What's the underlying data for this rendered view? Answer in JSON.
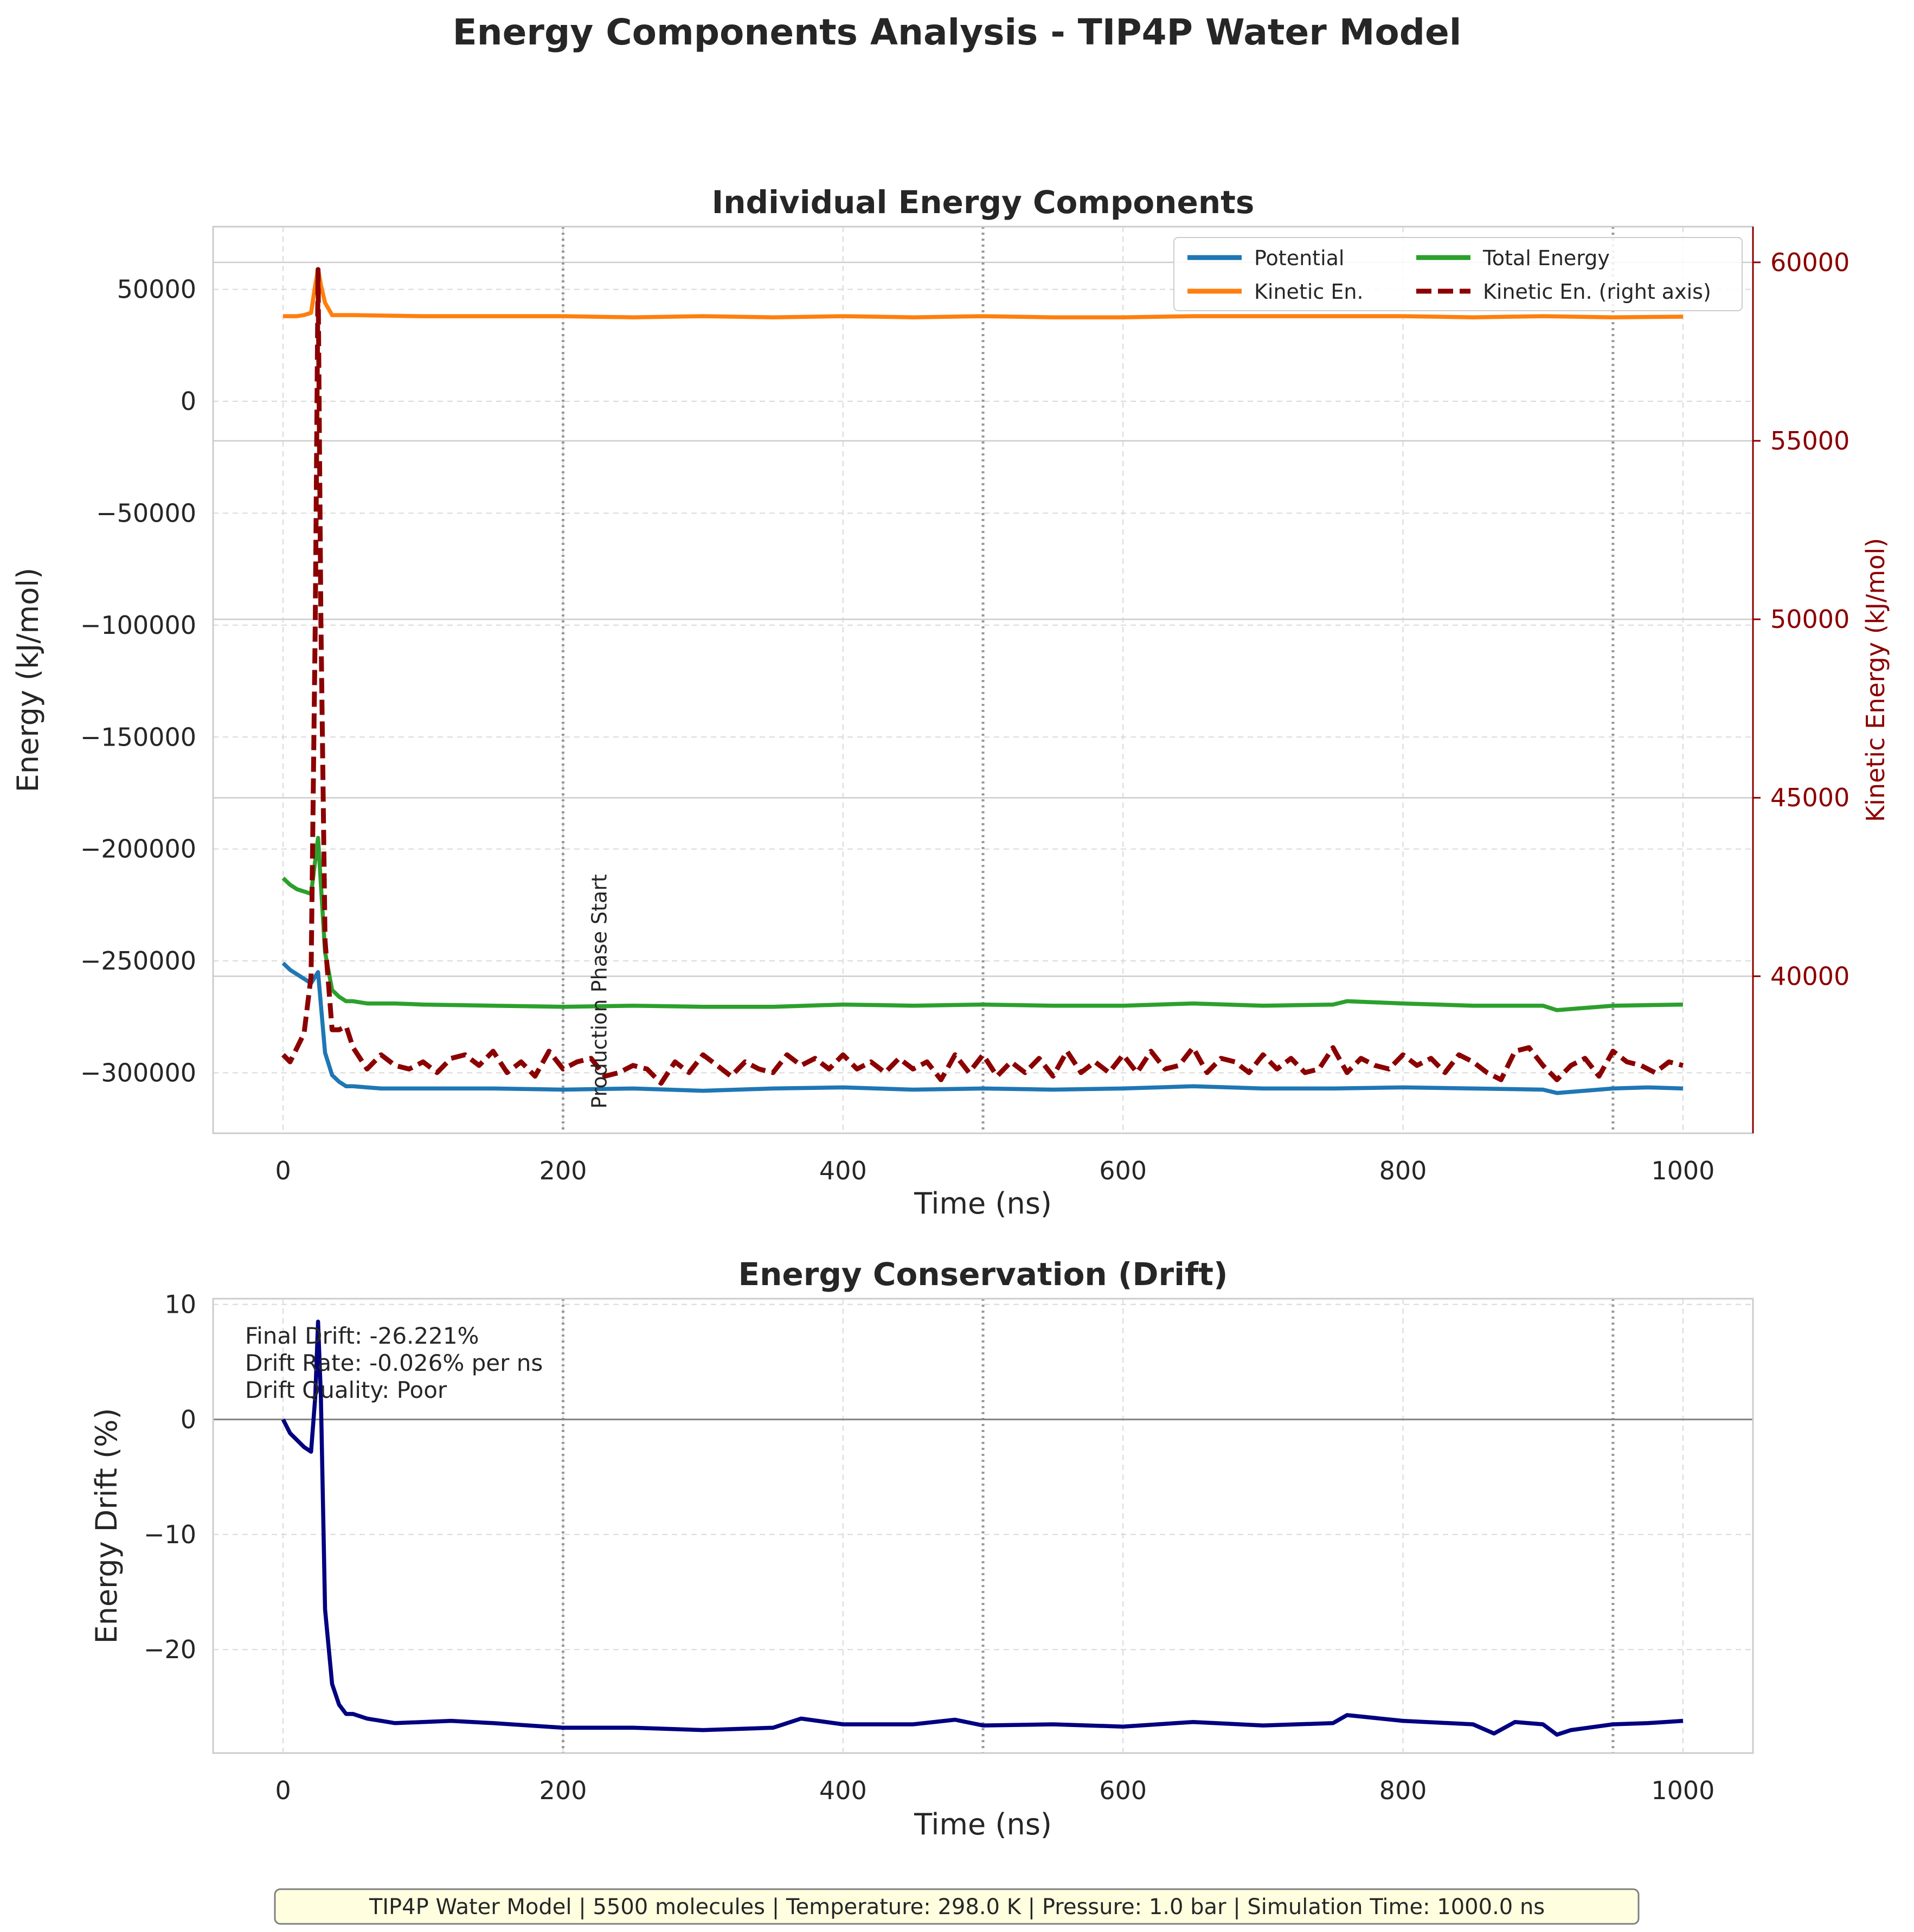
{
  "figure": {
    "title": "Energy Components Analysis - TIP4P Water Model",
    "footer": "TIP4P Water Model | 5500 molecules | Temperature: 298.0 K | Pressure: 1.0 bar | Simulation Time: 1000.0 ns"
  },
  "colors": {
    "potential": "#1f77b4",
    "kinetic": "#ff7f0e",
    "total": "#2ca02c",
    "kinetic_right": "#8b0000",
    "drift": "#000080",
    "grid": "#d9d9d9",
    "footer_bg": "#ffffe0"
  },
  "chart_data": [
    {
      "type": "line",
      "title": "Individual Energy Components",
      "xlabel": "Time (ns)",
      "ylabel": "Energy (kJ/mol)",
      "y2label": "Kinetic Energy (kJ/mol)",
      "xlim": [
        -50,
        1050
      ],
      "ylim": [
        -327000,
        78000
      ],
      "y2lim": [
        35600,
        61000
      ],
      "xticks": [
        0,
        200,
        400,
        600,
        800,
        1000
      ],
      "xtick_labels": [
        "0",
        "200",
        "400",
        "600",
        "800",
        "1000"
      ],
      "yticks": [
        50000,
        0,
        -50000,
        -100000,
        -150000,
        -200000,
        -250000,
        -300000
      ],
      "ytick_labels": [
        "50000",
        "0",
        "−50000",
        "−100000",
        "−150000",
        "−200000",
        "−250000",
        "−300000"
      ],
      "y2ticks": [
        60000,
        55000,
        50000,
        45000,
        40000
      ],
      "y2tick_labels": [
        "60000",
        "55000",
        "50000",
        "45000",
        "40000"
      ],
      "vlines": [
        200,
        500,
        950
      ],
      "annotation": "Production Phase Start",
      "annotation_x": 200,
      "annotation_y": -270000,
      "grid": true,
      "legend_position": "top-right",
      "legend": [
        "Potential",
        "Kinetic En.",
        "Total Energy",
        "Kinetic En. (right axis)"
      ],
      "series": [
        {
          "name": "Potential",
          "axis": "left",
          "style": "solid",
          "color_key": "potential",
          "x": [
            0,
            5,
            10,
            15,
            20,
            25,
            30,
            35,
            40,
            45,
            50,
            60,
            70,
            80,
            100,
            150,
            200,
            250,
            300,
            350,
            400,
            450,
            500,
            550,
            600,
            650,
            700,
            750,
            800,
            850,
            900,
            910,
            950,
            975,
            1000
          ],
          "y": [
            -251000,
            -254000,
            -256000,
            -258000,
            -260000,
            -255000,
            -291000,
            -301000,
            -304000,
            -306000,
            -306000,
            -306500,
            -307000,
            -307000,
            -307000,
            -307000,
            -307500,
            -307000,
            -308000,
            -307000,
            -306500,
            -307500,
            -307000,
            -307500,
            -307000,
            -306000,
            -307000,
            -307000,
            -306500,
            -307000,
            -307500,
            -309000,
            -307000,
            -306500,
            -307000
          ]
        },
        {
          "name": "Kinetic En.",
          "axis": "left",
          "style": "solid",
          "color_key": "kinetic",
          "x": [
            0,
            10,
            15,
            20,
            23,
            25,
            27,
            30,
            35,
            40,
            50,
            100,
            150,
            200,
            250,
            300,
            350,
            400,
            450,
            500,
            550,
            600,
            650,
            700,
            750,
            800,
            850,
            900,
            950,
            1000
          ],
          "y": [
            38000,
            38000,
            38500,
            39500,
            52000,
            59000,
            52000,
            44000,
            38500,
            38500,
            38500,
            38000,
            38000,
            38000,
            37500,
            38000,
            37500,
            38000,
            37500,
            38000,
            37500,
            37500,
            38000,
            38000,
            38000,
            38000,
            37500,
            38000,
            37500,
            37800
          ]
        },
        {
          "name": "Total Energy",
          "axis": "left",
          "style": "solid",
          "color_key": "total",
          "x": [
            0,
            5,
            10,
            15,
            20,
            25,
            30,
            35,
            40,
            45,
            50,
            60,
            80,
            100,
            150,
            200,
            250,
            300,
            350,
            400,
            450,
            500,
            550,
            600,
            650,
            700,
            750,
            760,
            800,
            850,
            900,
            910,
            950,
            1000
          ],
          "y": [
            -213000,
            -216000,
            -218000,
            -219000,
            -220000,
            -195000,
            -246000,
            -263000,
            -266000,
            -268000,
            -268000,
            -269000,
            -269000,
            -269500,
            -270000,
            -270500,
            -270000,
            -270500,
            -270500,
            -269500,
            -270000,
            -269500,
            -270000,
            -270000,
            -269000,
            -270000,
            -269500,
            -268000,
            -269000,
            -270000,
            -270000,
            -272000,
            -270000,
            -269500
          ]
        },
        {
          "name": "Kinetic En. (right axis)",
          "axis": "right",
          "style": "dashed",
          "color_key": "kinetic_right",
          "x": [
            0,
            5,
            10,
            15,
            20,
            23,
            25,
            27,
            30,
            35,
            40,
            45,
            50,
            60,
            70,
            80,
            90,
            100,
            110,
            120,
            130,
            140,
            150,
            160,
            170,
            180,
            190,
            200,
            210,
            220,
            230,
            240,
            250,
            260,
            270,
            280,
            290,
            300,
            310,
            320,
            330,
            340,
            350,
            360,
            370,
            380,
            390,
            400,
            410,
            420,
            430,
            440,
            450,
            460,
            470,
            480,
            490,
            500,
            510,
            520,
            530,
            540,
            550,
            560,
            570,
            580,
            590,
            600,
            610,
            620,
            630,
            640,
            650,
            660,
            670,
            680,
            690,
            700,
            710,
            720,
            730,
            740,
            750,
            760,
            770,
            780,
            790,
            800,
            810,
            820,
            830,
            840,
            850,
            860,
            870,
            880,
            890,
            900,
            910,
            920,
            930,
            940,
            950,
            960,
            970,
            980,
            990,
            1000
          ],
          "y": [
            37800,
            37600,
            38000,
            38400,
            40000,
            50000,
            59800,
            50000,
            41000,
            38500,
            38500,
            38600,
            38000,
            37400,
            37800,
            37500,
            37400,
            37600,
            37300,
            37700,
            37800,
            37500,
            37900,
            37300,
            37600,
            37200,
            37900,
            37400,
            37600,
            37700,
            37200,
            37300,
            37500,
            37400,
            37000,
            37600,
            37300,
            37800,
            37500,
            37200,
            37600,
            37400,
            37300,
            37800,
            37500,
            37700,
            37400,
            37800,
            37400,
            37600,
            37300,
            37700,
            37400,
            37600,
            37100,
            37800,
            37300,
            37800,
            37200,
            37600,
            37300,
            37700,
            37200,
            37900,
            37300,
            37600,
            37300,
            37800,
            37300,
            37900,
            37400,
            37500,
            38000,
            37300,
            37700,
            37600,
            37300,
            37800,
            37400,
            37700,
            37300,
            37400,
            38000,
            37300,
            37700,
            37500,
            37400,
            37800,
            37500,
            37700,
            37300,
            37800,
            37600,
            37300,
            37100,
            37900,
            38000,
            37500,
            37100,
            37500,
            37700,
            37200,
            37900,
            37600,
            37500,
            37300,
            37600,
            37500
          ]
        }
      ]
    },
    {
      "type": "line",
      "title": "Energy Conservation (Drift)",
      "xlabel": "Time (ns)",
      "ylabel": "Energy Drift (%)",
      "xlim": [
        -50,
        1050
      ],
      "ylim": [
        -29,
        10.5
      ],
      "xticks": [
        0,
        200,
        400,
        600,
        800,
        1000
      ],
      "xtick_labels": [
        "0",
        "200",
        "400",
        "600",
        "800",
        "1000"
      ],
      "yticks": [
        10,
        0,
        -10,
        -20
      ],
      "ytick_labels": [
        "10",
        "0",
        "−10",
        "−20"
      ],
      "hline": 0,
      "vlines": [
        200,
        500,
        950
      ],
      "grid": true,
      "annotation_lines": [
        "Final Drift: -26.221%",
        "Drift Rate: -0.026% per ns",
        "Drift Quality: Poor"
      ],
      "series": [
        {
          "name": "",
          "color_key": "drift",
          "x": [
            0,
            5,
            10,
            15,
            20,
            23,
            25,
            27,
            30,
            35,
            40,
            45,
            50,
            60,
            70,
            80,
            100,
            120,
            150,
            200,
            250,
            300,
            350,
            370,
            400,
            450,
            480,
            500,
            550,
            600,
            650,
            700,
            750,
            760,
            800,
            850,
            865,
            880,
            900,
            910,
            920,
            950,
            975,
            1000
          ],
          "y": [
            0,
            -1.2,
            -1.8,
            -2.4,
            -2.8,
            2.0,
            8.5,
            2.0,
            -16.5,
            -23.0,
            -24.8,
            -25.6,
            -25.6,
            -26.0,
            -26.2,
            -26.4,
            -26.3,
            -26.2,
            -26.4,
            -26.8,
            -26.8,
            -27.0,
            -26.8,
            -26.0,
            -26.5,
            -26.5,
            -26.1,
            -26.6,
            -26.5,
            -26.7,
            -26.3,
            -26.6,
            -26.4,
            -25.7,
            -26.2,
            -26.5,
            -27.3,
            -26.3,
            -26.5,
            -27.4,
            -27.0,
            -26.5,
            -26.4,
            -26.2
          ]
        }
      ]
    }
  ]
}
